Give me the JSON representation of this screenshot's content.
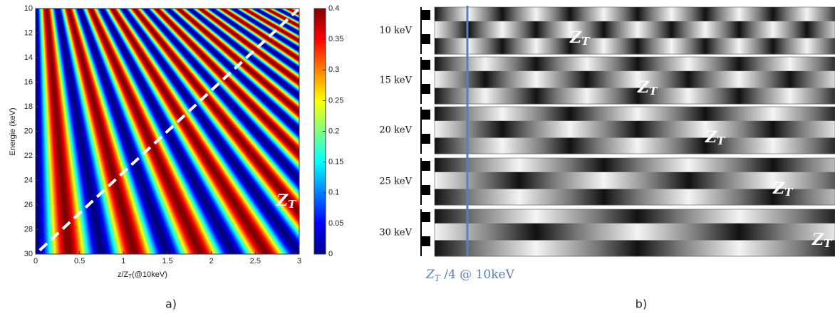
{
  "chart_data": [
    {
      "type": "heatmap",
      "xlabel": [
        "z/Z",
        "T",
        "(@10keV)"
      ],
      "ylabel": "Energie (keV)",
      "xlim": [
        0,
        3
      ],
      "xticks": [
        0,
        0.5,
        1,
        1.5,
        2,
        2.5,
        3
      ],
      "ylim": [
        10,
        30
      ],
      "yticks": [
        10,
        12,
        14,
        16,
        18,
        20,
        22,
        24,
        26,
        28,
        30
      ],
      "y_reversed": true,
      "colorbar": {
        "lim": [
          0,
          0.4
        ],
        "ticks": [
          0,
          0.05,
          0.1,
          0.15,
          0.2,
          0.25,
          0.3,
          0.35,
          0.4
        ]
      },
      "annotation": [
        "Z",
        "T"
      ],
      "caption": "a)"
    },
    {
      "type": "image",
      "rows": [
        "10 keV",
        "15 keV",
        "20 keV",
        "25 keV",
        "30 keV"
      ],
      "annotation": [
        "Z",
        "T"
      ],
      "marker_label": [
        "Z",
        "T",
        " /4 @ 10keV"
      ],
      "caption": "b)"
    }
  ]
}
